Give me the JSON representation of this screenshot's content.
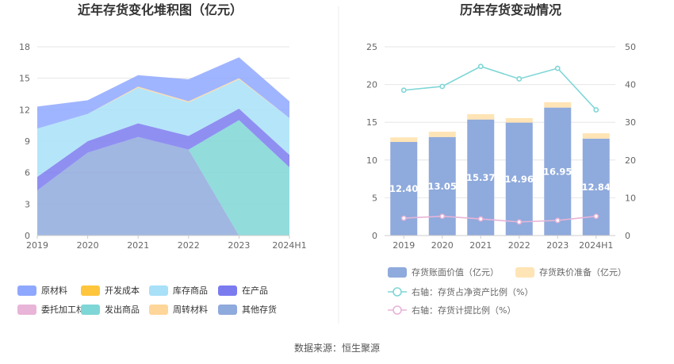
{
  "source": "数据来源：恒生聚源",
  "chart_data": [
    {
      "type": "area",
      "stacked": true,
      "title": "近年存货变化堆积图（亿元）",
      "categories": [
        "2019",
        "2020",
        "2021",
        "2022",
        "2023",
        "2024H1"
      ],
      "ylim": [
        0,
        18
      ],
      "yticks": [
        0,
        3,
        6,
        9,
        12,
        15,
        18
      ],
      "grid": true,
      "legend_position": "bottom",
      "series": [
        {
          "name": "其他存货",
          "color": "#8faadc",
          "values": [
            4.3,
            7.9,
            9.4,
            8.2,
            0.0,
            0.0
          ]
        },
        {
          "name": "发出商品",
          "color": "#7fd6d6",
          "values": [
            0.0,
            0.0,
            0.0,
            0.0,
            11.0,
            6.5
          ]
        },
        {
          "name": "委托加工材料",
          "color": "#e8b4d8",
          "values": [
            0.0,
            0.0,
            0.0,
            0.0,
            0.0,
            0.0
          ]
        },
        {
          "name": "在产品",
          "color": "#7b7bf0",
          "values": [
            1.3,
            1.1,
            1.3,
            1.3,
            1.1,
            1.2
          ]
        },
        {
          "name": "开发成本",
          "color": "#ffc53d",
          "values": [
            0.0,
            0.0,
            0.0,
            0.0,
            0.0,
            0.0
          ]
        },
        {
          "name": "库存商品",
          "color": "#a8e0f8",
          "values": [
            4.6,
            2.6,
            3.4,
            3.2,
            2.8,
            3.5
          ]
        },
        {
          "name": "周转材料",
          "color": "#ffd699",
          "values": [
            0.0,
            0.0,
            0.1,
            0.1,
            0.1,
            0.0
          ]
        },
        {
          "name": "原材料",
          "color": "#8fa8ff",
          "values": [
            2.1,
            1.3,
            1.1,
            2.1,
            2.0,
            1.6
          ]
        }
      ],
      "legend_order": [
        "原材料",
        "开发成本",
        "库存商品",
        "在产品",
        "委托加工材料",
        "发出商品",
        "周转材料",
        "其他存货"
      ]
    },
    {
      "type": "bar",
      "stacked": true,
      "title": "历年存货变动情况",
      "categories": [
        "2019",
        "2020",
        "2021",
        "2022",
        "2023",
        "2024H1"
      ],
      "ylim": [
        0,
        25
      ],
      "yticks": [
        0,
        5,
        10,
        15,
        20,
        25
      ],
      "y2lim": [
        0,
        50
      ],
      "y2ticks": [
        0,
        10,
        20,
        30,
        40,
        50
      ],
      "grid": true,
      "legend_position": "bottom",
      "series": [
        {
          "name": "存货账面价值（亿元）",
          "color": "#8faadc",
          "type": "bar",
          "axis": "left",
          "values": [
            12.4,
            13.05,
            15.37,
            14.96,
            16.95,
            12.84
          ],
          "labels": [
            "12.40",
            "13.05",
            "15.37",
            "14.96",
            "16.95",
            "12.84"
          ]
        },
        {
          "name": "存货跌价准备（亿元）",
          "color": "#ffe4b5",
          "type": "bar",
          "axis": "left",
          "values": [
            0.6,
            0.7,
            0.7,
            0.6,
            0.7,
            0.7
          ]
        },
        {
          "name": "右轴：存货占净资产比例（%）",
          "color": "#7fd6d6",
          "type": "line",
          "axis": "right",
          "values": [
            38.5,
            39.5,
            44.8,
            41.5,
            44.3,
            33.3
          ]
        },
        {
          "name": "右轴：存货计提比例（%）",
          "color": "#e8b4d8",
          "type": "line",
          "axis": "right",
          "values": [
            4.6,
            5.1,
            4.4,
            3.6,
            4.0,
            5.1
          ]
        }
      ]
    }
  ]
}
